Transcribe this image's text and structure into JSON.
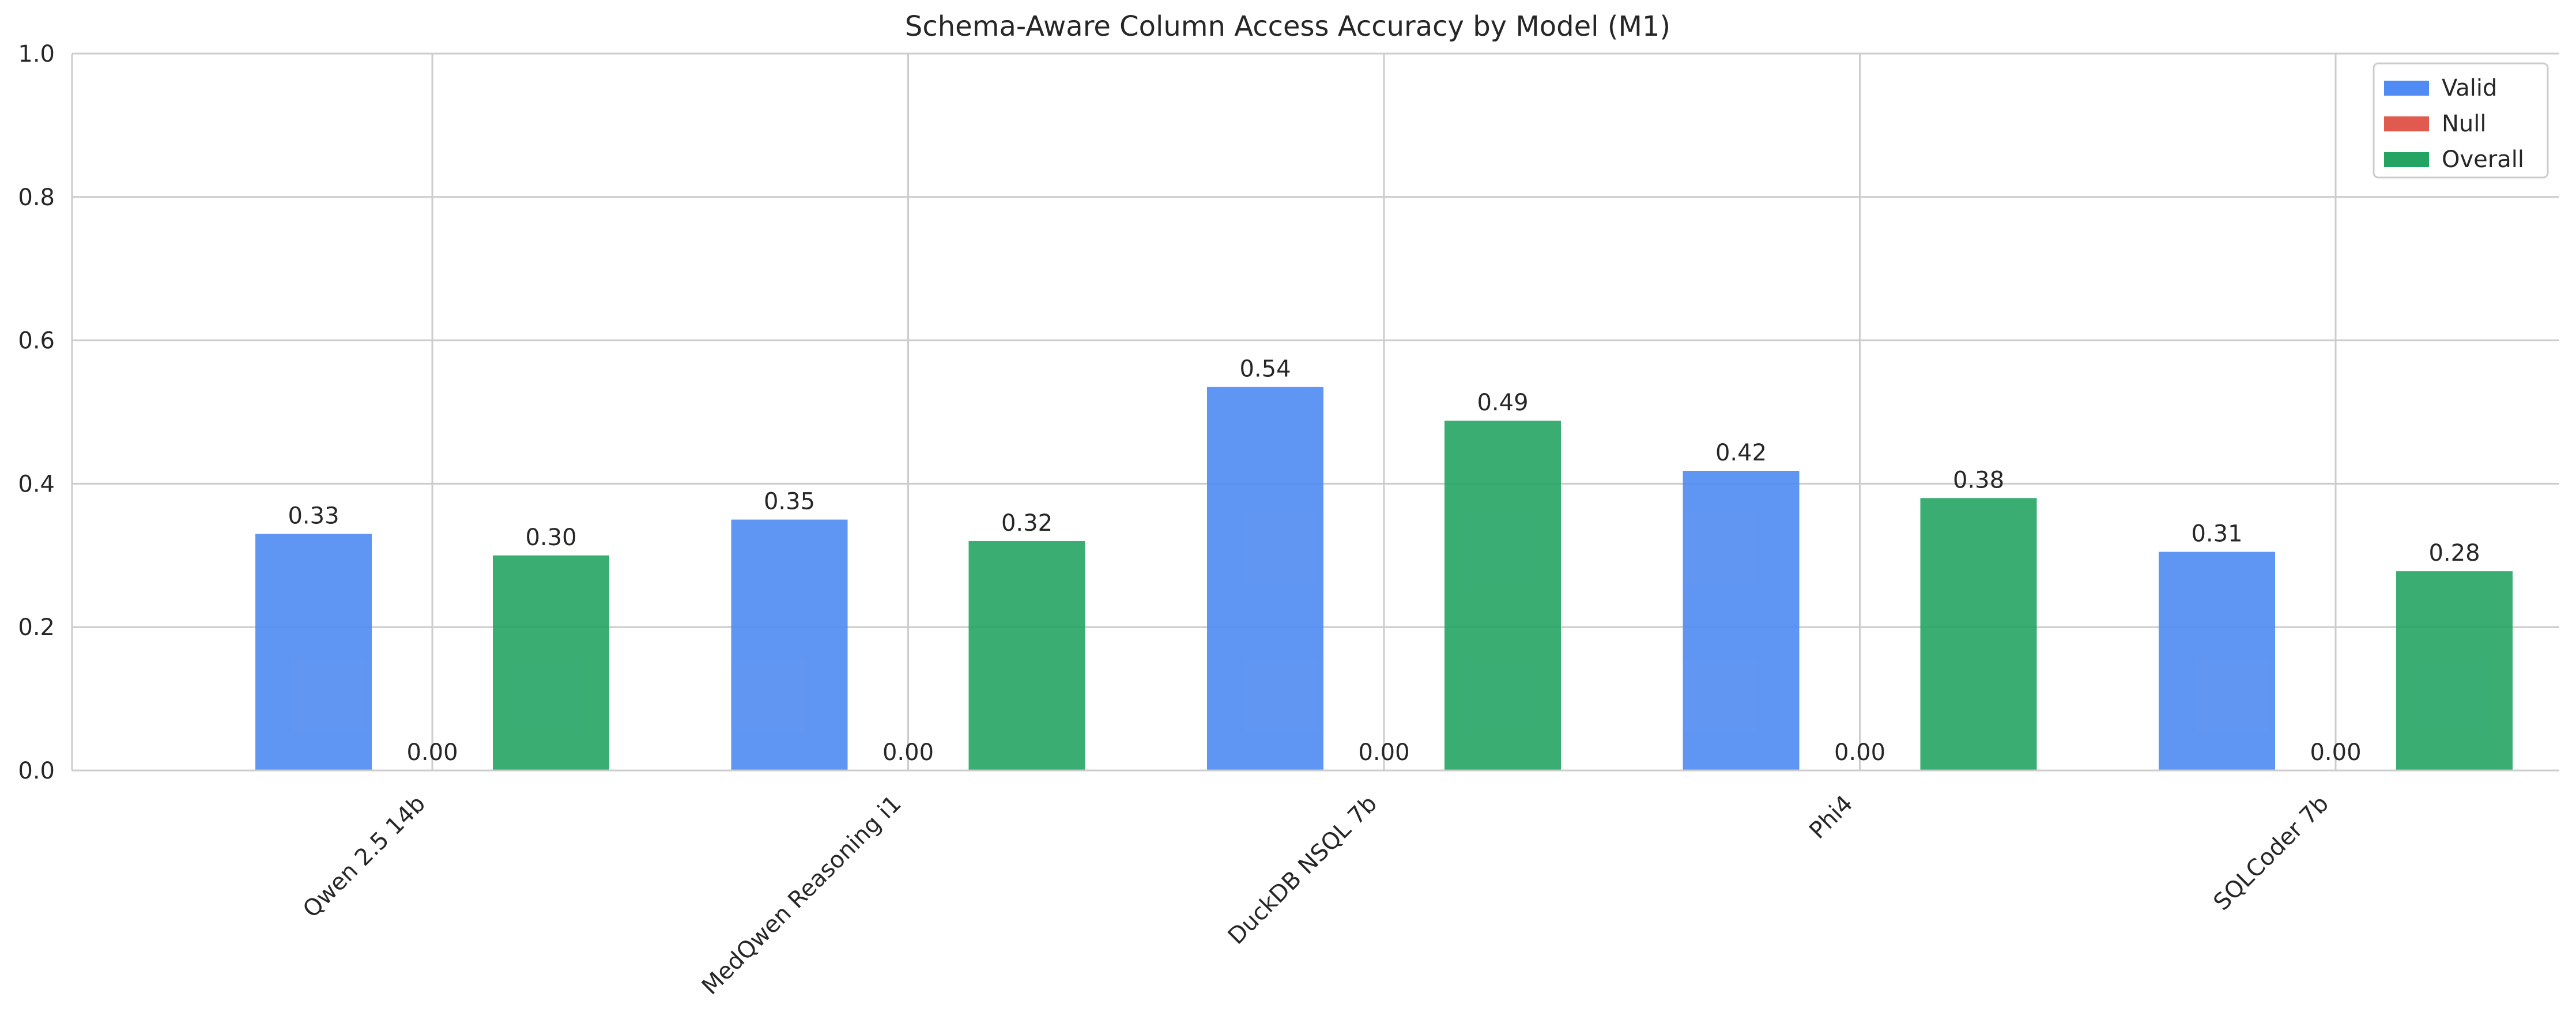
{
  "chart_data": {
    "type": "bar",
    "title": "Schema-Aware Column Access Accuracy by Model (M1)",
    "xlabel": "",
    "ylabel": "",
    "ylim": [
      0,
      1.0
    ],
    "yticks": [
      "0.0",
      "0.2",
      "0.4",
      "0.6",
      "0.8",
      "1.0"
    ],
    "grid": true,
    "legend_position": "top-right",
    "categories": [
      "Qwen 2.5 14b",
      "MedQwen Reasoning i1",
      "DuckDB NSQL 7b",
      "Phi4",
      "SQLCoder 7b"
    ],
    "series": [
      {
        "name": "Valid",
        "color": "#4f8bf2",
        "values": [
          0.33,
          0.35,
          0.535,
          0.418,
          0.305
        ],
        "labels": [
          "0.33",
          "0.35",
          "0.54",
          "0.42",
          "0.31"
        ]
      },
      {
        "name": "Null",
        "color": "#e05a4f",
        "values": [
          0.0,
          0.0,
          0.0,
          0.0,
          0.0
        ],
        "labels": [
          "0.00",
          "0.00",
          "0.00",
          "0.00",
          "0.00"
        ]
      },
      {
        "name": "Overall",
        "color": "#23a463",
        "values": [
          0.3,
          0.32,
          0.488,
          0.38,
          0.278
        ],
        "labels": [
          "0.30",
          "0.32",
          "0.49",
          "0.38",
          "0.28"
        ]
      }
    ]
  }
}
